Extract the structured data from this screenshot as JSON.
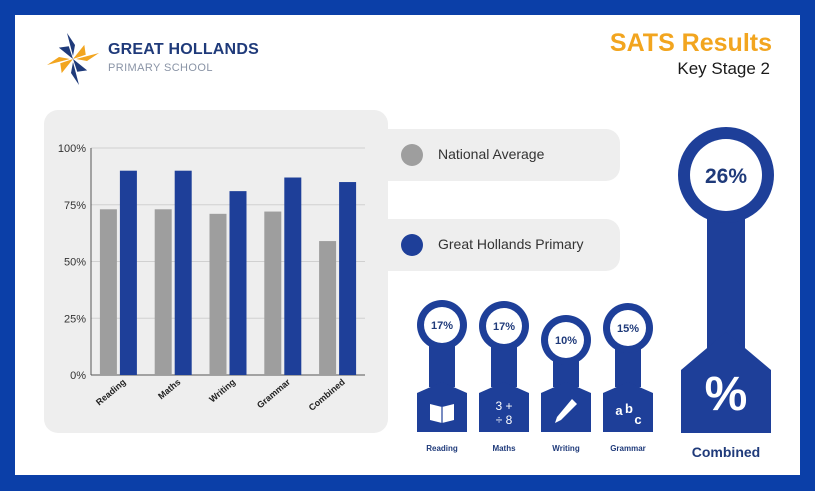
{
  "header": {
    "school_name": "GREAT HOLLANDS",
    "school_sub": "PRIMARY SCHOOL",
    "title": "SATS Results",
    "subtitle": "Key Stage 2"
  },
  "colors": {
    "border": "#0b3fa8",
    "national": "#9e9e9e",
    "school": "#1e3f99",
    "accent": "#f2a51f"
  },
  "chart_data": {
    "type": "bar",
    "categories": [
      "Reading",
      "Maths",
      "Writing",
      "Grammar",
      "Combined"
    ],
    "series": [
      {
        "name": "National Average",
        "values": [
          73,
          73,
          71,
          72,
          59
        ]
      },
      {
        "name": "Great Hollands Primary",
        "values": [
          90,
          90,
          81,
          87,
          85
        ]
      }
    ],
    "yticks": [
      "0%",
      "25%",
      "50%",
      "75%",
      "100%"
    ],
    "ylim": [
      0,
      100
    ],
    "grid": true,
    "legend": "right"
  },
  "badges": [
    {
      "label": "Reading",
      "value": "17%",
      "icon": "book-icon"
    },
    {
      "label": "Maths",
      "value": "17%",
      "icon": "math-symbols-icon",
      "icon_text": [
        "3 +",
        "÷ 8"
      ]
    },
    {
      "label": "Writing",
      "value": "10%",
      "icon": "pencil-icon"
    },
    {
      "label": "Grammar",
      "value": "15%",
      "icon": "abc-icon",
      "icon_text": [
        "a",
        "b",
        "c"
      ]
    }
  ],
  "combined": {
    "label": "Combined",
    "value": "26%",
    "icon": "percent-icon",
    "icon_text": "%"
  }
}
